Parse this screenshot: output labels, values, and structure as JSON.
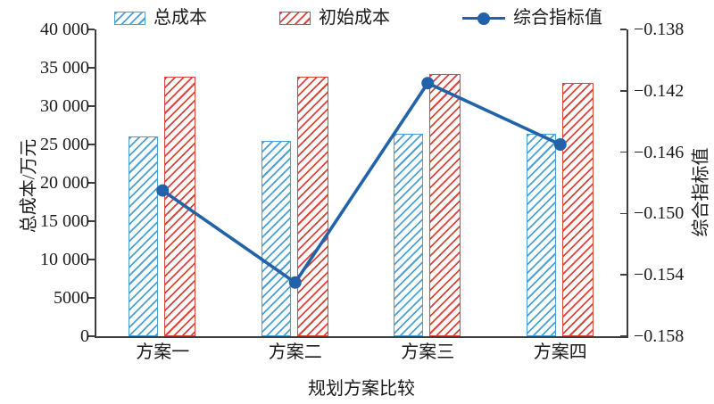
{
  "chart_data": {
    "type": "bar+line",
    "categories": [
      "方案一",
      "方案二",
      "方案三",
      "方案四"
    ],
    "x_title": "规划方案比较",
    "left_axis": {
      "title": "总成本/万元",
      "min": 0,
      "max": 40000,
      "tick_step": 5000,
      "ticks": [
        {
          "value": 40000,
          "label": "40 000"
        },
        {
          "value": 35000,
          "label": "35 000"
        },
        {
          "value": 30000,
          "label": "30 000"
        },
        {
          "value": 25000,
          "label": "25 000"
        },
        {
          "value": 20000,
          "label": "20 000"
        },
        {
          "value": 15000,
          "label": "15 000"
        },
        {
          "value": 10000,
          "label": "10 000"
        },
        {
          "value": 5000,
          "label": "5000"
        },
        {
          "value": 0,
          "label": "0"
        }
      ]
    },
    "right_axis": {
      "title": "综合指标值",
      "min": -0.158,
      "max": -0.138,
      "tick_step": 0.004,
      "ticks": [
        {
          "value": -0.138,
          "label": "−0.138"
        },
        {
          "value": -0.142,
          "label": "−0.142"
        },
        {
          "value": -0.146,
          "label": "−0.146"
        },
        {
          "value": -0.15,
          "label": "−0.150"
        },
        {
          "value": -0.154,
          "label": "−0.154"
        },
        {
          "value": -0.158,
          "label": "−0.158"
        }
      ]
    },
    "bar_series": [
      {
        "name": "总成本",
        "axis": "left",
        "color": "#4aa0d5",
        "values": [
          26100,
          25500,
          26400,
          26400
        ]
      },
      {
        "name": "初始成本",
        "axis": "left",
        "color": "#d8463a",
        "values": [
          33800,
          33800,
          34200,
          33000
        ]
      }
    ],
    "line_series": {
      "name": "综合指标值",
      "axis": "right",
      "color": "#2162a8",
      "values": [
        -0.1485,
        -0.1545,
        -0.1415,
        -0.1455
      ]
    },
    "legend_position": "top",
    "grid": false
  }
}
